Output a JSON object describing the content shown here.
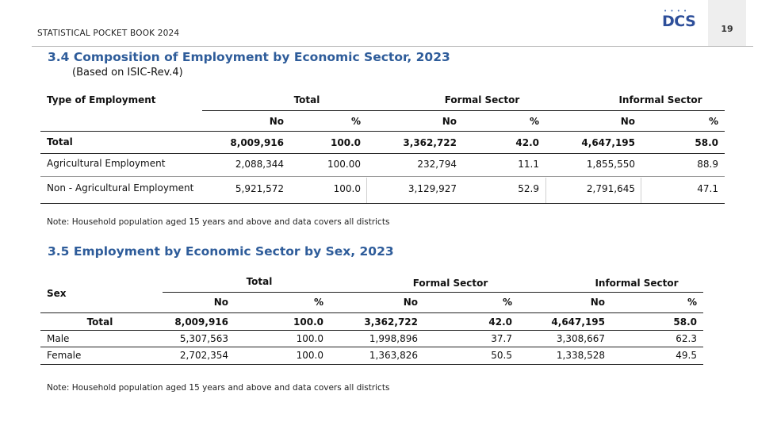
{
  "header": {
    "book_title": "STATISTICAL POCKET BOOK 2024",
    "logo_text": "DCS",
    "page_number": "19"
  },
  "table1": {
    "title": "3.4 Composition of Employment by Economic Sector, 2023",
    "subtitle": "(Based on ISIC-Rev.4)",
    "row_header": "Type of Employment",
    "groups": [
      "Total",
      "Formal Sector",
      "Informal Sector"
    ],
    "subheaders": [
      "No",
      "%",
      "No",
      "%",
      "No",
      "%"
    ],
    "rows": [
      {
        "label": "Total",
        "values": [
          "8,009,916",
          "100.0",
          "3,362,722",
          "42.0",
          "4,647,195",
          "58.0"
        ]
      },
      {
        "label": "Agricultural Employment",
        "values": [
          "2,088,344",
          "100.00",
          "232,794",
          "11.1",
          "1,855,550",
          "88.9"
        ]
      },
      {
        "label": "Non - Agricultural Employment",
        "values": [
          "5,921,572",
          "100.0",
          "3,129,927",
          "52.9",
          "2,791,645",
          "47.1"
        ]
      }
    ],
    "note": "Note: Household population aged 15 years and above and data covers all districts"
  },
  "table2": {
    "title": "3.5 Employment by Economic Sector by Sex, 2023",
    "row_header": "Sex",
    "groups": [
      "Total",
      "Formal Sector",
      "Informal Sector"
    ],
    "subheaders": [
      "No",
      "%",
      "No",
      "%",
      "No",
      "%"
    ],
    "rows": [
      {
        "label": "Total",
        "values": [
          "8,009,916",
          "100.0",
          "3,362,722",
          "42.0",
          "4,647,195",
          "58.0"
        ]
      },
      {
        "label": "Male",
        "values": [
          "5,307,563",
          "100.0",
          "1,998,896",
          "37.7",
          "3,308,667",
          "62.3"
        ]
      },
      {
        "label": "Female",
        "values": [
          "2,702,354",
          "100.0",
          "1,363,826",
          "50.5",
          "1,338,528",
          "49.5"
        ]
      }
    ],
    "note": "Note: Household population aged 15 years and above and data covers all districts"
  }
}
